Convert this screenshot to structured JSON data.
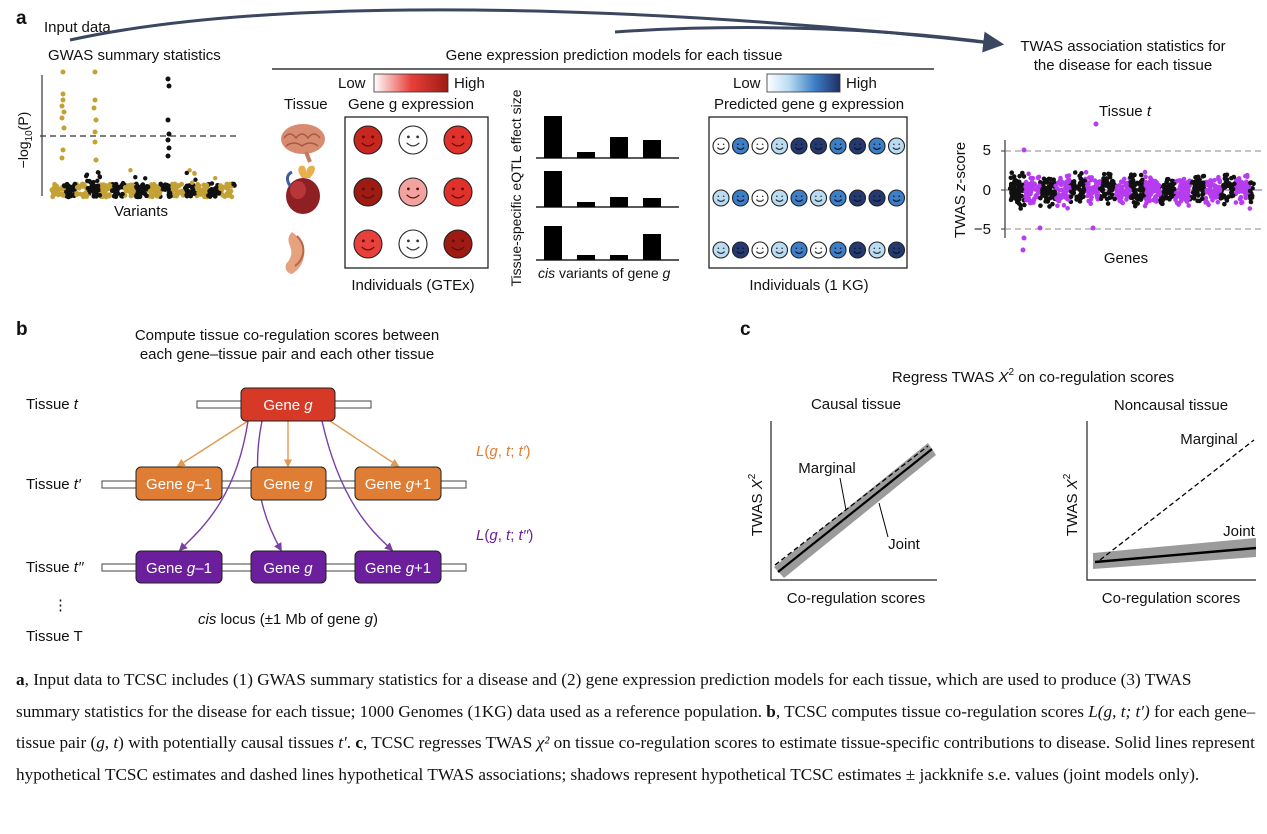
{
  "panel_a": {
    "label": "a",
    "input_title": "Input data",
    "gwas_title": "GWAS summary statistics",
    "gwas_ylabel_pre": "−log",
    "gwas_ylabel_sub": "10",
    "gwas_ylabel_post": "(P)",
    "gwas_xlabel": "Variants",
    "models_title": "Gene expression prediction models for each tissue",
    "legend1": {
      "low": "Low",
      "high": "High"
    },
    "tissue_header": "Tissue",
    "expr_header": "Gene g expression",
    "expr_caption": "Individuals (GTEx)",
    "eqtl_ylabel": "Tissue-specific eQTL effect size",
    "eqtl_xlabel": "cis variants of gene g",
    "legend2": {
      "low": "Low",
      "high": "High"
    },
    "pred_header": "Predicted gene g expression",
    "pred_caption": "Individuals (1 KG)",
    "twas_title_line1": "TWAS association statistics for",
    "twas_title_line2": "the disease for each tissue",
    "tissue_t": "Tissue t",
    "twas_ylabel": "TWAS z-score",
    "twas_ticks": [
      "5",
      "0",
      "−5"
    ],
    "twas_xlabel": "Genes",
    "tissue_icons": [
      "brain-icon",
      "heart-icon",
      "muscle-icon"
    ],
    "colors": {
      "red_dark": "#9e1b14",
      "red": "#e0312a",
      "red_light": "#f2a3a0",
      "blue_light": "#b9dcf2",
      "blue_mid": "#3d7fc7",
      "blue_dark": "#23396f",
      "gold": "#c4a135",
      "purple": "#b63cf0"
    }
  },
  "panel_b": {
    "label": "b",
    "title_line1": "Compute tissue co-regulation scores between",
    "title_line2": "each gene–tissue pair and each other tissue",
    "tissue_t": "Tissue t",
    "tissue_t1": "Tissue t′",
    "tissue_t2": "Tissue t′′",
    "vdots": "⋮",
    "tissue_T": "Tissue T",
    "gene_g": "Gene g",
    "gene_gm1": "Gene g−1",
    "gene_gp1": "Gene g+1",
    "L1": "L(g, t; t′)",
    "L2": "L(g, t; t′′)",
    "locus": "cis locus (±1 Mb of gene g)",
    "colors": {
      "red": "#d63a26",
      "orange": "#e07d34",
      "purple": "#6b1f9c",
      "arrow_orange": "#e29a51",
      "arrow_purple": "#7a3fa6"
    }
  },
  "panel_c": {
    "label": "c",
    "title": "Regress TWAS X² on co-regulation scores",
    "causal_title": "Causal tissue",
    "noncausal_title": "Noncausal tissue",
    "ylabel": "TWAS X²",
    "xlabel": "Co-regulation scores",
    "marginal": "Marginal",
    "joint": "Joint"
  },
  "caption": {
    "a_label": "a",
    "a_text": ", Input data to TCSC includes (1) GWAS summary statistics for a disease and (2) gene expression prediction models for each tissue, which are used to produce (3) TWAS summary statistics for the disease for each tissue; 1000 Genomes (1KG) data used as a reference population. ",
    "b_label": "b",
    "b_text1": ", TCSC computes tissue co-regulation scores ",
    "b_formula": "L(g, t; t′)",
    "b_text2": " for each gene–tissue pair (",
    "b_gt": "g, t",
    "b_text3": ") with potentially causal tissues ",
    "b_tp": "t′",
    "b_text4": ". ",
    "c_label": "c",
    "c_text1": ", TCSC regresses TWAS ",
    "c_chi": "χ²",
    "c_text2": " on tissue co-regulation scores to estimate tissue-specific contributions to disease. Solid lines represent hypothetical TCSC estimates and dashed lines hypothetical TWAS associations; shadows represent hypothetical TCSC estimates ± jackknife s.e. values (joint models only)."
  }
}
